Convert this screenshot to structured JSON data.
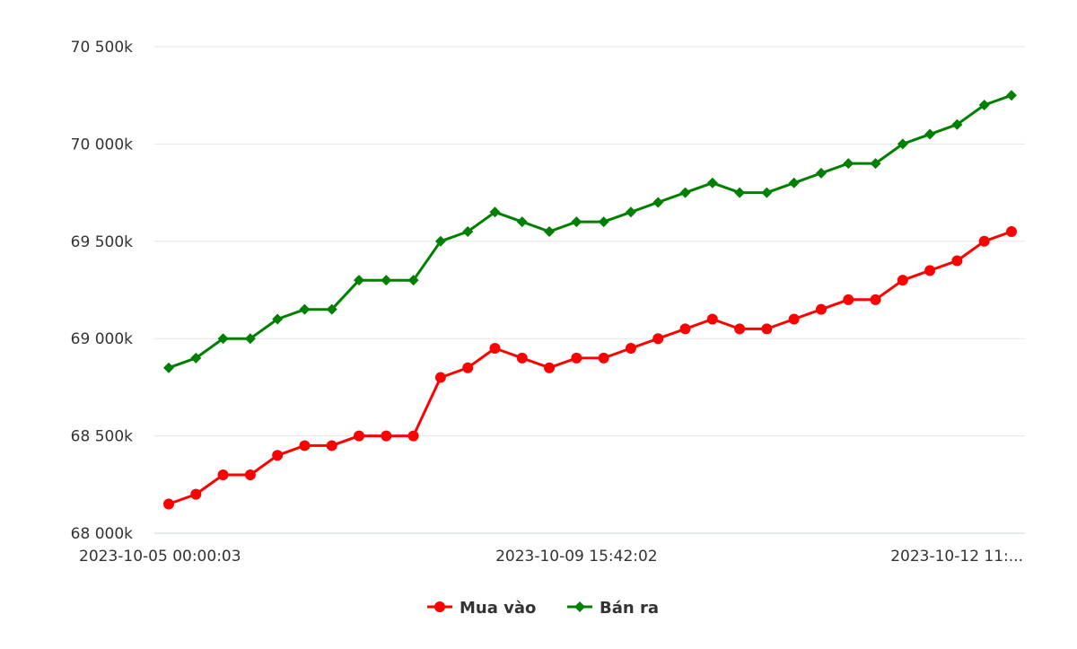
{
  "chart_data": {
    "type": "line",
    "title": "",
    "xlabel": "",
    "ylabel": "",
    "ylim": [
      68000,
      70500
    ],
    "y_ticks": [
      68000,
      68500,
      69000,
      69500,
      70000,
      70500
    ],
    "y_tick_labels": [
      "68 000k",
      "68 500k",
      "69 000k",
      "69 500k",
      "70 000k",
      "70 500k"
    ],
    "x_tick_labels": [
      {
        "index": 0,
        "label": "2023-10-05 00:00:03",
        "align": "start"
      },
      {
        "index": 15,
        "label": "2023-10-09 15:42:02",
        "align": "middle"
      },
      {
        "index": 31,
        "label": "2023-10-12 11:...",
        "align": "end"
      }
    ],
    "grid": true,
    "legend_position": "bottom-center",
    "series": [
      {
        "name": "Mua vào",
        "color": "#ff0000",
        "marker": "circle",
        "values": [
          68150,
          68200,
          68300,
          68300,
          68400,
          68450,
          68450,
          68500,
          68500,
          68500,
          68800,
          68850,
          68950,
          68900,
          68850,
          68900,
          68900,
          68950,
          69000,
          69050,
          69100,
          69050,
          69050,
          69100,
          69150,
          69200,
          69200,
          69300,
          69350,
          69400,
          69500,
          69550
        ]
      },
      {
        "name": "Bán ra",
        "color": "#008000",
        "marker": "diamond",
        "values": [
          68850,
          68900,
          69000,
          69000,
          69100,
          69150,
          69150,
          69300,
          69300,
          69300,
          69500,
          69550,
          69650,
          69600,
          69550,
          69600,
          69600,
          69650,
          69700,
          69750,
          69800,
          69750,
          69750,
          69800,
          69850,
          69900,
          69900,
          70000,
          70050,
          70100,
          70200,
          70250
        ]
      }
    ]
  }
}
